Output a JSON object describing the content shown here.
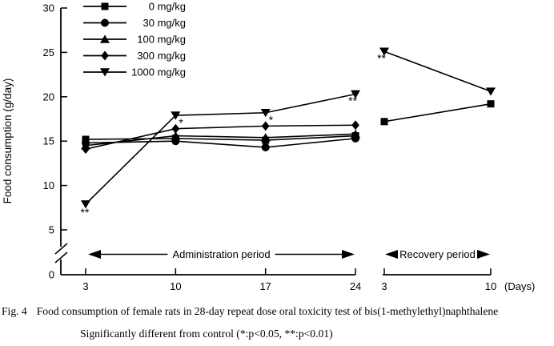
{
  "chart_data": {
    "type": "line",
    "title": "",
    "ylabel": "Food consumption (g/day)",
    "xlabel_unit": "(Days)",
    "ylim": [
      0,
      30
    ],
    "yticks": [
      0,
      5,
      10,
      15,
      20,
      25,
      30
    ],
    "y_axis_break": "axis broken between 0 and 5",
    "grid": "off",
    "legend_position": "top-left-inside",
    "periods": [
      {
        "key": "administration",
        "label": "Administration period",
        "days": [
          3,
          10,
          17,
          24
        ]
      },
      {
        "key": "recovery",
        "label": "Recovery period",
        "days": [
          3,
          10
        ]
      }
    ],
    "series": [
      {
        "name": "0 mg/kg",
        "marker": "square",
        "administration": [
          15.2,
          15.3,
          15.1,
          15.6
        ],
        "recovery": [
          17.2,
          19.2
        ]
      },
      {
        "name": "30 mg/kg",
        "marker": "circle",
        "administration": [
          14.8,
          15.0,
          14.3,
          15.3
        ],
        "recovery": null
      },
      {
        "name": "100 mg/kg",
        "marker": "triangle-up",
        "administration": [
          14.5,
          15.6,
          15.4,
          15.8
        ],
        "recovery": null
      },
      {
        "name": "300 mg/kg",
        "marker": "diamond",
        "administration": [
          14.1,
          16.4,
          16.7,
          16.8
        ],
        "recovery": null
      },
      {
        "name": "1000 mg/kg",
        "marker": "triangle-down",
        "administration": [
          7.9,
          17.9,
          18.2,
          20.3
        ],
        "recovery": [
          25.1,
          20.6
        ]
      }
    ],
    "annotations": [
      {
        "period": "administration",
        "day": 3,
        "series": "1000 mg/kg",
        "label": "**",
        "placement": "below"
      },
      {
        "period": "administration",
        "day": 10,
        "series": "1000 mg/kg",
        "label": "*",
        "placement": "below-right"
      },
      {
        "period": "administration",
        "day": 17,
        "series": "1000 mg/kg",
        "label": "*",
        "placement": "below-right"
      },
      {
        "period": "administration",
        "day": 24,
        "series": "1000 mg/kg",
        "label": "**",
        "placement": "below-left"
      },
      {
        "period": "recovery",
        "day": 3,
        "series": "1000 mg/kg",
        "label": "**",
        "placement": "below-left"
      }
    ],
    "colors": {
      "line": "#000000",
      "marker": "#000000",
      "text": "#000000",
      "background": "#ffffff"
    }
  },
  "caption": {
    "fig_label": "Fig. 4",
    "line1": "Food consumption of female rats in 28-day repeat dose oral toxicity test of bis(1-methylethyl)naphthalene",
    "line2": "Significantly different from control (*:p<0.05,  **:p<0.01)"
  }
}
